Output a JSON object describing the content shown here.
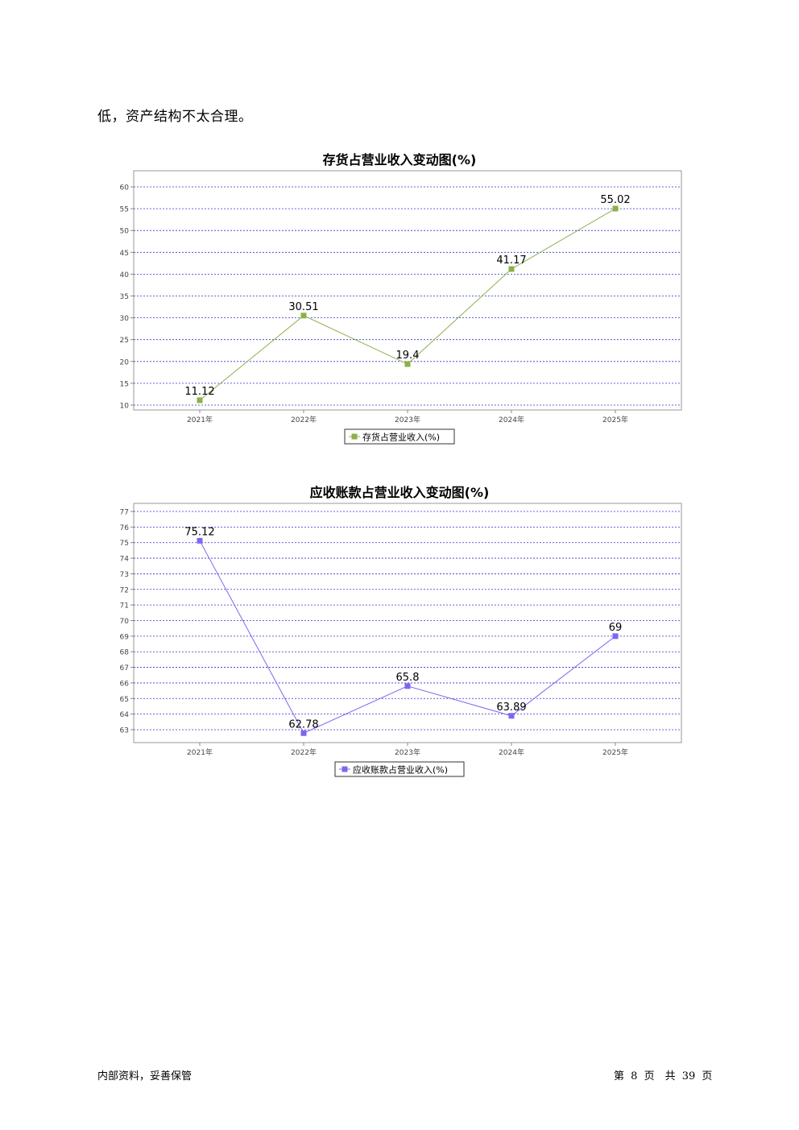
{
  "intro_text": "低，资产结构不太合理。",
  "charts": [
    {
      "title": "存货占营业收入变动图(%)",
      "chart_data": {
        "type": "line",
        "categories": [
          "2021年",
          "2022年",
          "2023年",
          "2024年",
          "2025年"
        ],
        "series": [
          {
            "name": "存货占营业收入(%)",
            "values": [
              11.12,
              30.51,
              19.4,
              41.17,
              55.02
            ]
          }
        ],
        "yticks": [
          10,
          15,
          20,
          25,
          30,
          35,
          40,
          45,
          50,
          55,
          60
        ],
        "ylim": [
          10,
          60
        ],
        "grid": true,
        "legend": "bottom-center",
        "color": "#8db04a"
      }
    },
    {
      "title": "应收账款占营业收入变动图(%)",
      "chart_data": {
        "type": "line",
        "categories": [
          "2021年",
          "2022年",
          "2023年",
          "2024年",
          "2025年"
        ],
        "series": [
          {
            "name": "应收账款占营业收入(%)",
            "values": [
              75.12,
              62.78,
              65.8,
              63.89,
              69
            ]
          }
        ],
        "yticks": [
          63,
          64,
          65,
          66,
          67,
          68,
          69,
          70,
          71,
          72,
          73,
          74,
          75,
          76,
          77
        ],
        "ylim": [
          63,
          77
        ],
        "grid": true,
        "legend": "bottom-center",
        "color": "#7b68ee"
      }
    }
  ],
  "footer": {
    "left": "内部资料，妥善保管",
    "page_prefix": "第",
    "page_current": "8",
    "page_mid": "页　共",
    "page_total": "39",
    "page_suffix": "页"
  }
}
